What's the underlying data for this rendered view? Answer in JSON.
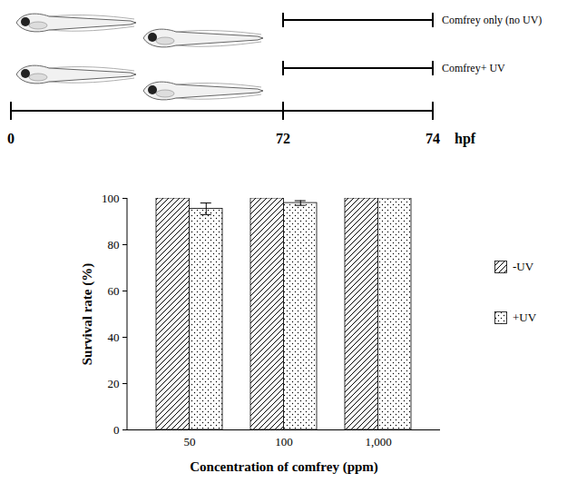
{
  "chart_data": {
    "type": "bar",
    "categories": [
      50,
      100,
      1000
    ],
    "x_label": "Concentration of comfrey (ppm)",
    "y_label": "Survival rate (%)",
    "series": [
      {
        "name": "-UV",
        "color": "#000000",
        "values": [
          100,
          100,
          100
        ]
      },
      {
        "name": "+UV",
        "color": "#000000",
        "values": [
          95.5,
          98,
          100
        ],
        "errors": [
          2.5,
          1,
          null
        ]
      }
    ],
    "ylim": [
      0,
      100
    ],
    "yticks": [
      0,
      20,
      40,
      60,
      80,
      100
    ],
    "legend": "right",
    "grid": false
  },
  "diagram": {
    "timeline": {
      "ticks": [
        0,
        72,
        74
      ],
      "unit": "hpf"
    },
    "treatments": [
      {
        "label": "Comfrey only (no UV)",
        "from": 72,
        "to": 74
      },
      {
        "label": "Comfrey+ UV",
        "from": 72,
        "to": 74
      }
    ]
  }
}
